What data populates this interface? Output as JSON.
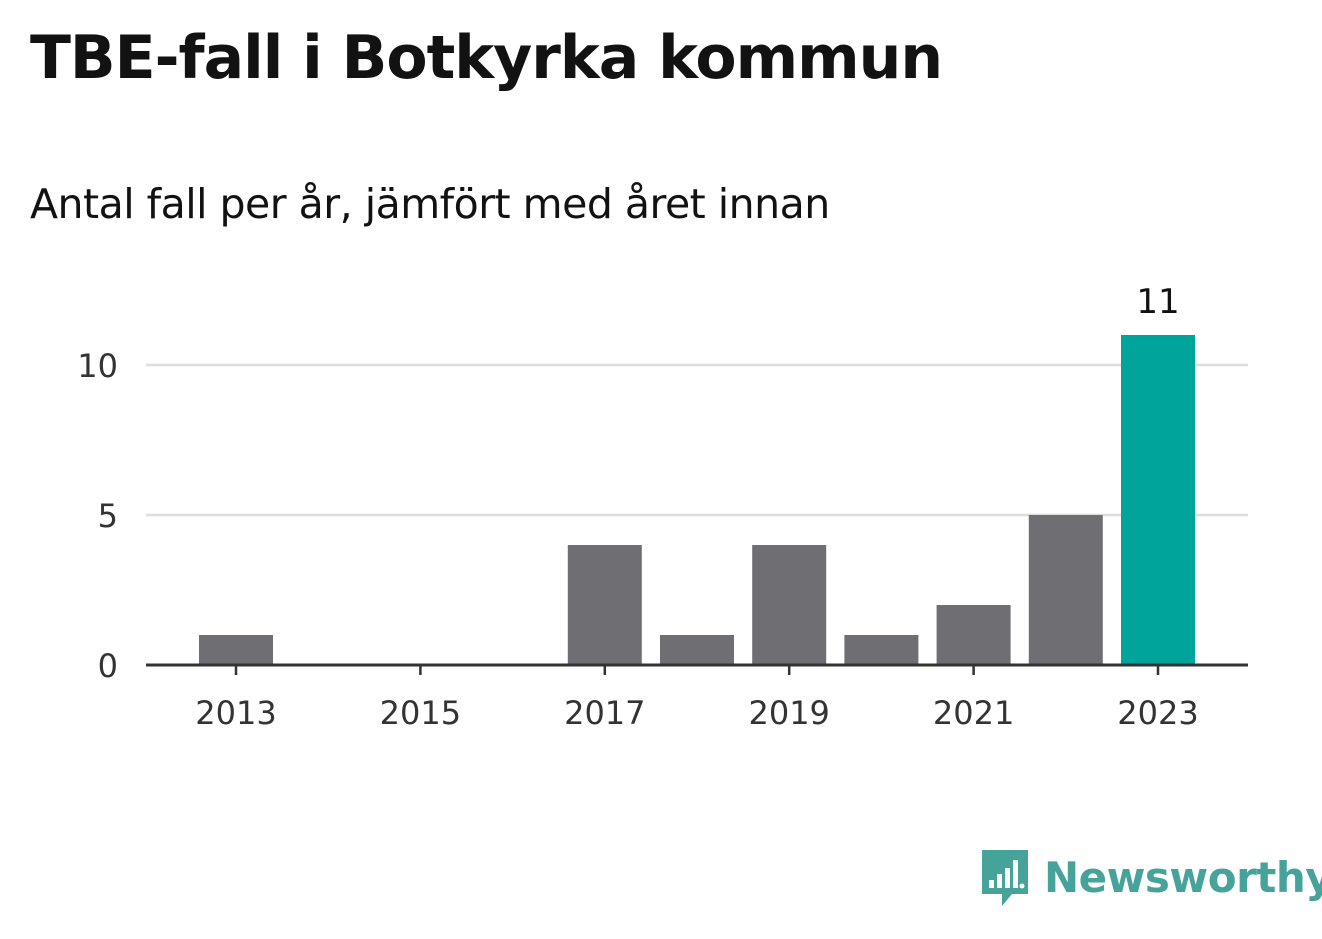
{
  "title": "TBE-fall i Botkyrka kommun",
  "subtitle": "Antal fall per år, jämfört med året innan",
  "brand": {
    "name": "Newsworthy",
    "icon": "bar-chart-speech-bubble-icon",
    "color": "#46a39a"
  },
  "colors": {
    "bar": "#6f6e73",
    "highlight": "#00a49a",
    "grid": "#dddddd",
    "axis": "#333333"
  },
  "chart_data": {
    "type": "bar",
    "categories": [
      2013,
      2014,
      2015,
      2016,
      2017,
      2018,
      2019,
      2020,
      2021,
      2022,
      2023
    ],
    "values": [
      1,
      0,
      0,
      0,
      4,
      1,
      4,
      1,
      2,
      5,
      11
    ],
    "highlight_index": 10,
    "data_labels": [
      {
        "index": 10,
        "text": "11"
      }
    ],
    "x_tick_labels": [
      "2013",
      "2015",
      "2017",
      "2019",
      "2021",
      "2023"
    ],
    "y_ticks": [
      0,
      5,
      10
    ],
    "ylim": [
      0,
      11
    ],
    "grid": "horizontal",
    "legend": "none",
    "xlabel": "",
    "ylabel": ""
  }
}
